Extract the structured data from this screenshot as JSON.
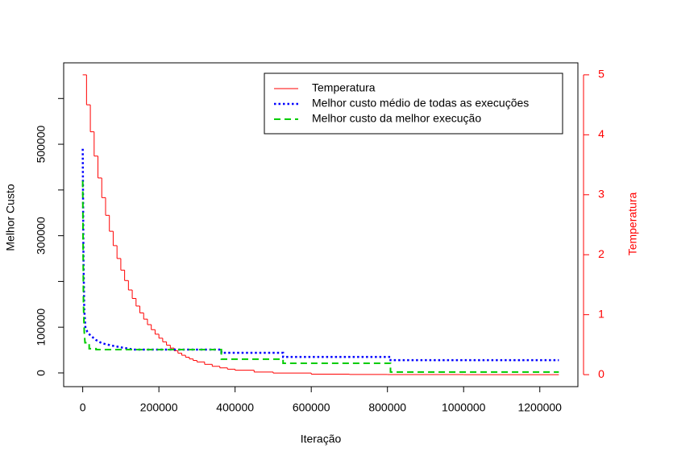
{
  "chart_data": {
    "type": "line",
    "x_label": "Iteração",
    "y_label": "Melhor Custo",
    "y2_label": "Temperatura",
    "xlim": [
      -50000,
      1300000
    ],
    "xticks": [
      0,
      200000,
      400000,
      600000,
      800000,
      1000000,
      1200000
    ],
    "ylim": [
      -30000,
      678000
    ],
    "yticks": [
      0,
      100000,
      300000,
      500000
    ],
    "yticks_unlabeled": [
      200000,
      400000,
      600000
    ],
    "y2lim": [
      -0.2,
      5.2
    ],
    "y2ticks": [
      0,
      1,
      2,
      3,
      4,
      5
    ],
    "y2_color": "#ff0000",
    "legend": "top-right",
    "series": [
      {
        "name": "Temperatura",
        "color": "#ff0000",
        "line_style": "solid",
        "step": "post",
        "axis": "y2",
        "x": [
          0,
          10000,
          20000,
          30000,
          40000,
          50000,
          60000,
          70000,
          80000,
          90000,
          100000,
          110000,
          120000,
          130000,
          140000,
          150000,
          160000,
          170000,
          180000,
          190000,
          200000,
          210000,
          220000,
          230000,
          240000,
          250000,
          260000,
          270000,
          280000,
          290000,
          300000,
          320000,
          340000,
          360000,
          380000,
          400000,
          450000,
          500000,
          600000,
          700000,
          800000,
          1000000,
          1250000
        ],
        "values": [
          5,
          4.5,
          4.05,
          3.645,
          3.28,
          2.952,
          2.657,
          2.391,
          2.152,
          1.937,
          1.743,
          1.569,
          1.412,
          1.271,
          1.144,
          1.029,
          0.926,
          0.834,
          0.75,
          0.675,
          0.608,
          0.547,
          0.492,
          0.443,
          0.399,
          0.359,
          0.323,
          0.291,
          0.262,
          0.236,
          0.212,
          0.172,
          0.139,
          0.113,
          0.091,
          0.074,
          0.044,
          0.026,
          0.009,
          0.003,
          0.001,
          0,
          0
        ]
      },
      {
        "name": "Melhor custo médio de todas as execuções",
        "color": "#0000ff",
        "line_style": "dotted",
        "x": [
          0,
          2000,
          4000,
          7000,
          12000,
          20000,
          35000,
          50000,
          75000,
          100000,
          134000,
          364000,
          364000,
          526000,
          526000,
          808000,
          808000,
          1250000
        ],
        "values": [
          490000,
          250000,
          140000,
          100000,
          90000,
          82000,
          72000,
          65000,
          60000,
          56000,
          51000,
          51000,
          44000,
          44000,
          35000,
          35000,
          28000,
          28000
        ]
      },
      {
        "name": "Melhor custo da melhor execução",
        "color": "#00cc00",
        "line_style": "dashed",
        "x": [
          0,
          2000,
          4000,
          6000,
          17000,
          17000,
          35000,
          35000,
          364000,
          364000,
          526000,
          526000,
          808000,
          808000,
          1250000
        ],
        "values": [
          420000,
          150000,
          90000,
          66000,
          66000,
          53000,
          53000,
          51000,
          51000,
          30000,
          30000,
          21000,
          21000,
          2000,
          2000
        ]
      }
    ]
  }
}
